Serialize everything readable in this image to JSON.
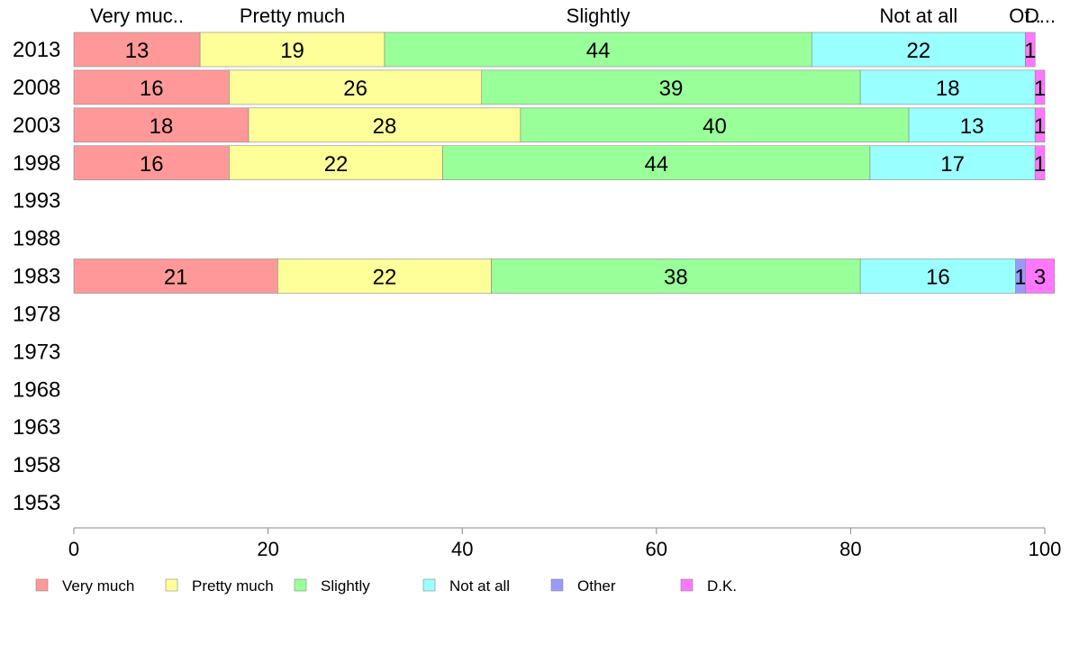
{
  "chart_data": {
    "type": "bar",
    "orientation": "horizontal",
    "stacked": true,
    "xlim": [
      0,
      100
    ],
    "x_ticks": [
      0,
      20,
      40,
      60,
      80,
      100
    ],
    "grid": false,
    "legend_position": "bottom",
    "top_labels": [
      "Very muc..",
      "Pretty much",
      "Slightly",
      "Not at all",
      "Ot..",
      "D..."
    ],
    "categories": [
      "2013",
      "2008",
      "2003",
      "1998",
      "1993",
      "1988",
      "1983",
      "1978",
      "1973",
      "1968",
      "1963",
      "1958",
      "1953"
    ],
    "series": [
      {
        "name": "Very much",
        "color": "#ff9999",
        "values": [
          13,
          16,
          18,
          16,
          null,
          null,
          21,
          null,
          null,
          null,
          null,
          null,
          null
        ]
      },
      {
        "name": "Pretty much",
        "color": "#ffff99",
        "values": [
          19,
          26,
          28,
          22,
          null,
          null,
          22,
          null,
          null,
          null,
          null,
          null,
          null
        ]
      },
      {
        "name": "Slightly",
        "color": "#99ff99",
        "values": [
          44,
          39,
          40,
          44,
          null,
          null,
          38,
          null,
          null,
          null,
          null,
          null,
          null
        ]
      },
      {
        "name": "Not at all",
        "color": "#99ffff",
        "values": [
          22,
          18,
          13,
          17,
          null,
          null,
          16,
          null,
          null,
          null,
          null,
          null,
          null
        ]
      },
      {
        "name": "Other",
        "color": "#9999ff",
        "values": [
          0,
          0,
          0,
          0,
          null,
          null,
          1,
          null,
          null,
          null,
          null,
          null,
          null
        ]
      },
      {
        "name": "D.K.",
        "color": "#ff77ff",
        "values": [
          1,
          1,
          1,
          1,
          null,
          null,
          3,
          null,
          null,
          null,
          null,
          null,
          null
        ]
      }
    ]
  }
}
